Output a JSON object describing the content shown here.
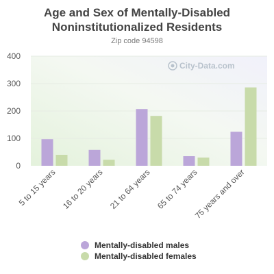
{
  "chart_data": {
    "type": "bar",
    "title_line1": "Age and Sex of Mentally-Disabled",
    "title_line2": "Noninstitutionalized Residents",
    "subtitle": "Zip code 94598",
    "watermark": "City-Data.com",
    "categories": [
      "5 to 15 years",
      "16 to 20 years",
      "21 to 64 years",
      "65 to 74 years",
      "75 years and over"
    ],
    "series": [
      {
        "name": "Mentally-disabled males",
        "values": [
          97,
          58,
          207,
          35,
          124
        ],
        "color": "#bba6d9"
      },
      {
        "name": "Mentally-disabled females",
        "values": [
          40,
          22,
          182,
          30,
          286
        ],
        "color": "#c8dbaa"
      }
    ],
    "yticks": [
      0,
      100,
      200,
      300,
      400
    ],
    "ylim": [
      0,
      400
    ],
    "grid": true,
    "legend_position": "bottom"
  }
}
